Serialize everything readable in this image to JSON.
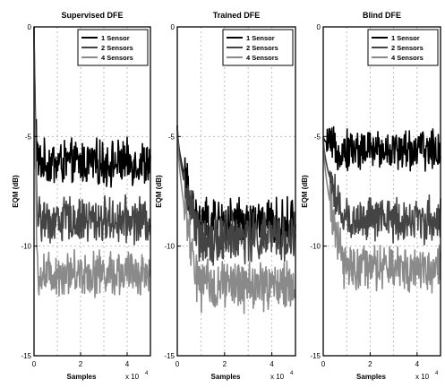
{
  "chart_data": [
    {
      "type": "line",
      "title": "Supervised DFE",
      "xlabel": "Samples",
      "ylabel": "EQM (dB)",
      "x_scale_label": "x 10",
      "x_scale_exp": "4",
      "xlim": [
        0,
        5
      ],
      "ylim": [
        -15,
        0
      ],
      "xticks": [
        "0",
        "2",
        "4"
      ],
      "yticks": [
        "0",
        "-5",
        "-10",
        "-15"
      ],
      "grid": true,
      "legend_position": "top-right",
      "series": [
        {
          "name": "1 Sensor",
          "color": "#000000",
          "start": 0,
          "plateau": -6.2,
          "knee": 0.15,
          "noise": 0.9
        },
        {
          "name": "2 Sensors",
          "color": "#444444",
          "start": 0,
          "plateau": -8.8,
          "knee": 0.15,
          "noise": 0.9
        },
        {
          "name": "4 Sensors",
          "color": "#8a8a8a",
          "start": 0,
          "plateau": -11.2,
          "knee": 0.15,
          "noise": 0.9
        }
      ]
    },
    {
      "type": "line",
      "title": "Trained DFE",
      "xlabel": "Samples",
      "ylabel": "EQM (dB)",
      "x_scale_label": "x 10",
      "x_scale_exp": "4",
      "xlim": [
        0,
        5
      ],
      "ylim": [
        -15,
        0
      ],
      "xticks": [
        "0",
        "2",
        "4"
      ],
      "yticks": [
        "0",
        "-5",
        "-10",
        "-15"
      ],
      "grid": true,
      "legend_position": "top-right",
      "series": [
        {
          "name": "1 Sensor",
          "color": "#000000",
          "start": -4.5,
          "plateau": -9.0,
          "knee": 0.9,
          "noise": 1.0
        },
        {
          "name": "2 Sensors",
          "color": "#444444",
          "start": -4.5,
          "plateau": -9.6,
          "knee": 0.9,
          "noise": 1.0
        },
        {
          "name": "4 Sensors",
          "color": "#8a8a8a",
          "start": -4.5,
          "plateau": -11.8,
          "knee": 0.9,
          "noise": 1.0
        }
      ]
    },
    {
      "type": "line",
      "title": "Blind DFE",
      "xlabel": "Samples",
      "ylabel": "EQM (dB)",
      "x_scale_label": "x 10",
      "x_scale_exp": "4",
      "xlim": [
        0,
        5
      ],
      "ylim": [
        -15,
        0
      ],
      "xticks": [
        "0",
        "2",
        "4"
      ],
      "yticks": [
        "0",
        "-5",
        "-10",
        "-15"
      ],
      "grid": true,
      "legend_position": "top-right",
      "series": [
        {
          "name": "1 Sensor",
          "color": "#000000",
          "start": -5.0,
          "plateau": -5.6,
          "knee": 0.5,
          "noise": 0.8
        },
        {
          "name": "2 Sensors",
          "color": "#444444",
          "start": -5.0,
          "plateau": -8.8,
          "knee": 0.9,
          "noise": 0.9
        },
        {
          "name": "4 Sensors",
          "color": "#8a8a8a",
          "start": -5.0,
          "plateau": -11.0,
          "knee": 0.9,
          "noise": 0.9
        }
      ]
    }
  ]
}
